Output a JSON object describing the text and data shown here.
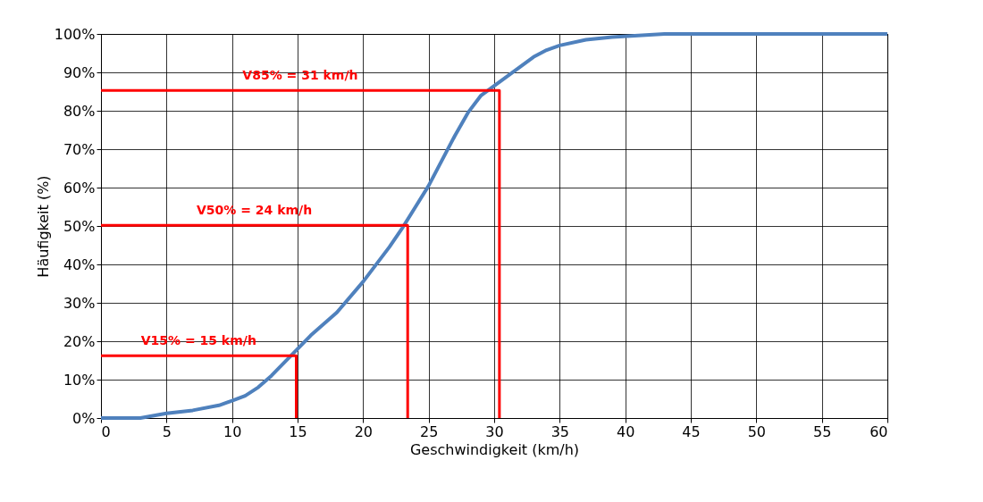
{
  "chart_data": {
    "type": "line",
    "xlabel": "Geschwindigkeit (km/h)",
    "ylabel": "Häufigkeit (%)",
    "xlim": [
      0,
      60
    ],
    "xticks": [
      0,
      5,
      10,
      15,
      20,
      25,
      30,
      35,
      40,
      45,
      50,
      55,
      60
    ],
    "ylim": [
      0,
      100
    ],
    "yticks": [
      {
        "value": 0,
        "label": "0%"
      },
      {
        "value": 10,
        "label": "10%"
      },
      {
        "value": 20,
        "label": "20%"
      },
      {
        "value": 30,
        "label": "30%"
      },
      {
        "value": 40,
        "label": "40%"
      },
      {
        "value": 50,
        "label": "50%"
      },
      {
        "value": 60,
        "label": "60%"
      },
      {
        "value": 70,
        "label": "70%"
      },
      {
        "value": 80,
        "label": "80%"
      },
      {
        "value": 90,
        "label": "90%"
      },
      {
        "value": 100,
        "label": "100%"
      }
    ],
    "grid": true,
    "marker": "none",
    "line_style": "solid",
    "series": [
      {
        "color": "#4f81bd",
        "x": [
          0,
          3,
          5,
          7,
          9,
          10,
          11,
          12,
          13,
          14,
          15,
          16,
          18,
          20,
          22,
          23,
          24,
          25,
          26,
          27,
          28,
          29,
          30,
          31,
          32,
          33,
          34,
          35,
          37,
          39,
          41,
          43,
          50,
          60
        ],
        "values": [
          0,
          0,
          1.2,
          2,
          3.3,
          4.5,
          5.8,
          8,
          11,
          14.5,
          18,
          21.5,
          27.5,
          35.5,
          44.5,
          49.5,
          55,
          60.5,
          67,
          73.5,
          79.5,
          84,
          86.5,
          89,
          91.5,
          94,
          95.8,
          97,
          98.5,
          99.2,
          99.6,
          100,
          100,
          100
        ]
      },
      {
        "color": "#ff0000",
        "x": [
          0,
          14.9,
          14.9
        ],
        "values": [
          16.2,
          16.2,
          0
        ]
      },
      {
        "color": "#ff0000",
        "x": [
          0,
          23.4,
          23.4
        ],
        "values": [
          50.2,
          50.2,
          0
        ]
      },
      {
        "color": "#ff0000",
        "x": [
          0,
          30.4,
          30.4
        ],
        "values": [
          85.3,
          85.3,
          0
        ]
      }
    ],
    "annotations": [
      "V15% = 15 km/h",
      "V50% = 24 km/h",
      "V85% = 31 km/h"
    ]
  }
}
